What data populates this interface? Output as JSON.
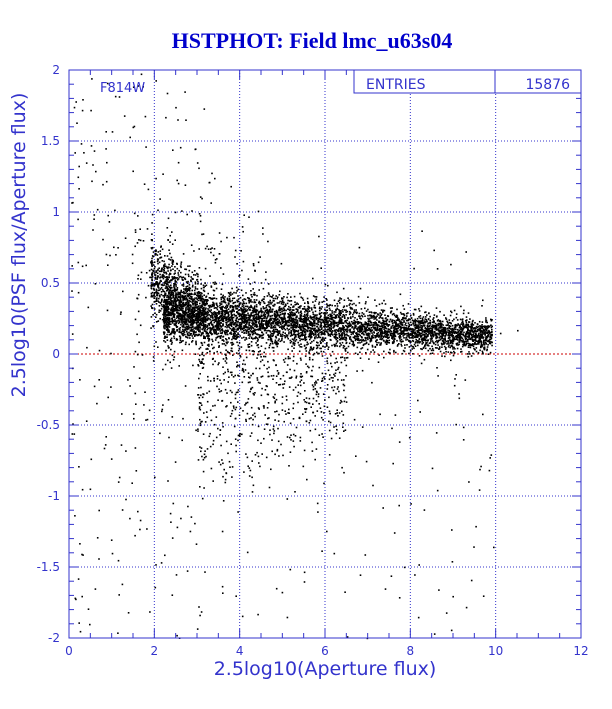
{
  "chart_data": {
    "type": "scatter",
    "title": "HSTPHOT: Field lmc_u63s04",
    "xlabel": "2.5log10(Aperture flux)",
    "ylabel": "2.5log10(PSF flux/Aperture flux)",
    "filter_label": "F814W",
    "stats": {
      "label": "ENTRIES",
      "value": "15876"
    },
    "xlim": [
      0,
      12
    ],
    "ylim": [
      -2,
      2
    ],
    "x_ticks": [
      0,
      2,
      4,
      6,
      8,
      10,
      12
    ],
    "y_ticks": [
      -2,
      -1.5,
      -1,
      -0.5,
      0,
      0.5,
      1,
      1.5,
      2
    ],
    "x_tick_labels": [
      "0",
      "2",
      "4",
      "6",
      "8",
      "10",
      "12"
    ],
    "y_tick_labels": [
      "-2",
      "-1.5",
      "-1",
      "-0.5",
      "0",
      "0.5",
      "1",
      "1.5",
      "2"
    ],
    "grid": true,
    "reference_line": {
      "y": 0,
      "color": "#cc0000",
      "style": "dashed"
    },
    "marker_color": "#000000",
    "frame_color": "#3333cc",
    "title_color": "#0000cc",
    "entries": 15876,
    "points_sample": [
      {
        "x": 0.15,
        "y": 1.78
      },
      {
        "x": 0.3,
        "y": 1.72
      },
      {
        "x": 0.5,
        "y": 1.72
      },
      {
        "x": 1.0,
        "y": 1.57
      },
      {
        "x": 0.85,
        "y": 1.45
      },
      {
        "x": 0.2,
        "y": 1.25
      },
      {
        "x": 3.1,
        "y": 1.1
      },
      {
        "x": 0.9,
        "y": 0.98
      },
      {
        "x": 0.2,
        "y": 0.65
      },
      {
        "x": 0.6,
        "y": 0.5
      },
      {
        "x": 1.2,
        "y": 0.3
      },
      {
        "x": 0.4,
        "y": 0.05
      },
      {
        "x": 0.9,
        "y": -0.3
      },
      {
        "x": 1.5,
        "y": -0.45
      },
      {
        "x": 0.3,
        "y": -0.95
      },
      {
        "x": 1.0,
        "y": -1.4
      },
      {
        "x": 0.6,
        "y": -1.65
      },
      {
        "x": 0.25,
        "y": -1.95
      },
      {
        "x": 2.5,
        "y": -1.55
      },
      {
        "x": 3.9,
        "y": -1.7
      },
      {
        "x": 5.1,
        "y": -1.85
      },
      {
        "x": 5.5,
        "y": -1.6
      },
      {
        "x": 6.2,
        "y": -1.4
      },
      {
        "x": 7.4,
        "y": -1.65
      },
      {
        "x": 9.3,
        "y": -1.78
      },
      {
        "x": 9.7,
        "y": -1.7
      },
      {
        "x": 8.5,
        "y": -0.8
      },
      {
        "x": 8.6,
        "y": -0.55
      },
      {
        "x": 8.0,
        "y": -1.05
      },
      {
        "x": 10.1,
        "y": 0.15
      },
      {
        "x": 9.9,
        "y": 0.2
      },
      {
        "x": 10.5,
        "y": 0.17
      }
    ],
    "density_regions": [
      {
        "x_range": [
          2.2,
          9.9
        ],
        "y_center_start": 0.28,
        "y_center_end": 0.13,
        "y_spread": 0.1,
        "fraction": 0.72
      },
      {
        "x_range": [
          1.9,
          3.2
        ],
        "y_center_start": 0.55,
        "y_center_end": 0.3,
        "y_spread": 0.14,
        "fraction": 0.1
      },
      {
        "x_range": [
          3.0,
          6.5
        ],
        "y_center_start": -0.2,
        "y_center_end": -0.2,
        "y_spread": 0.4,
        "fraction": 0.1
      },
      {
        "x_range": [
          1.5,
          4.5
        ],
        "y_center_start": 0.5,
        "y_center_end": 0.4,
        "y_spread": 0.6,
        "fraction": 0.03
      }
    ]
  }
}
